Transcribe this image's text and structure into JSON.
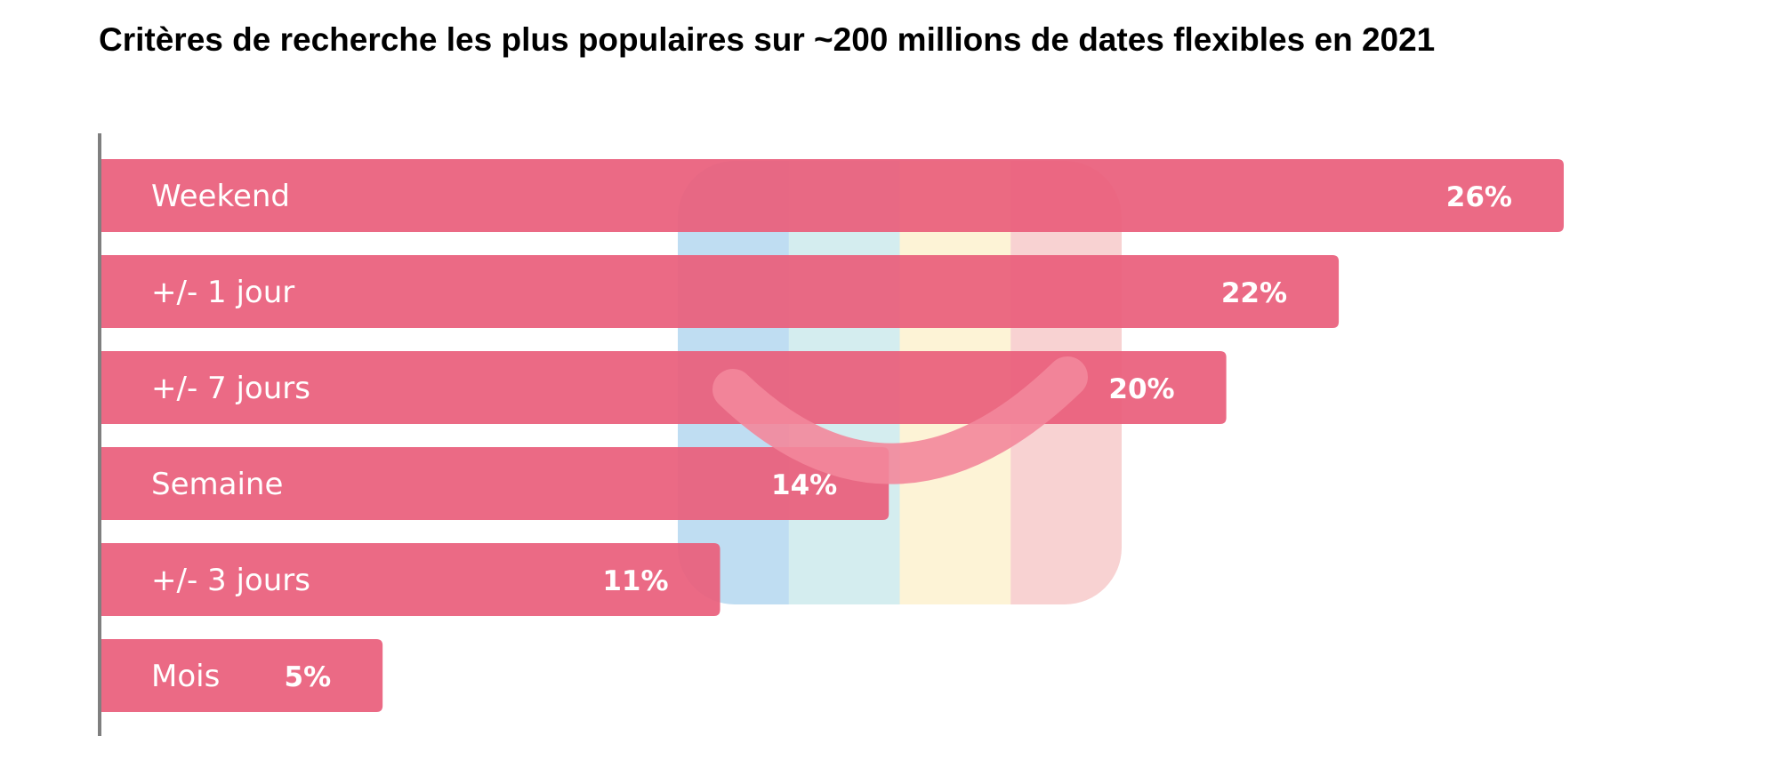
{
  "chart_data": {
    "type": "bar",
    "orientation": "horizontal",
    "title": "Critères de recherche les plus populaires sur ~200 millions de dates flexibles en 2021",
    "categories": [
      "Weekend",
      "+/-  1 jour",
      "+/-  7 jours",
      "Semaine",
      "+/-  3 jours",
      "Mois"
    ],
    "values": [
      26,
      22,
      20,
      14,
      11,
      5
    ],
    "value_labels": [
      "26%",
      "22%",
      "20%",
      "14%",
      "11%",
      "5%"
    ],
    "unit": "%",
    "xlabel": "",
    "ylabel": "",
    "grid": false,
    "legend": "none",
    "bar_color": "#EA5F7C",
    "axis_color": "#7F7F7F"
  },
  "logo": {
    "stripe_colors": [
      "#BFDDF2",
      "#D4EDEF",
      "#FDF3D6",
      "#F8D2D2"
    ],
    "smile_color": "#F3879B"
  }
}
